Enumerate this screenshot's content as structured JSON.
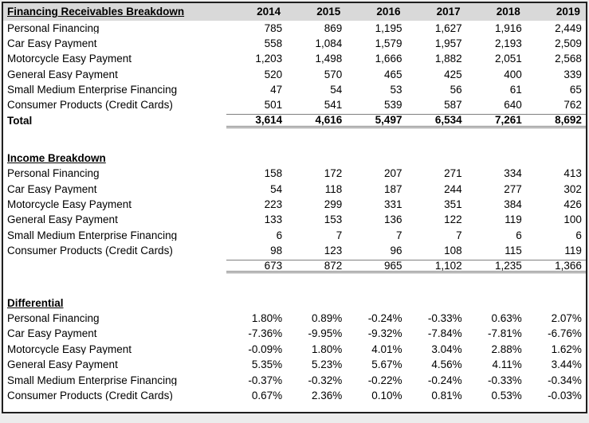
{
  "theme": {
    "page_background": "#ececec",
    "sheet_background": "#ffffff",
    "outer_border": "#1f1f1f",
    "header_band_background": "#d9d9d9",
    "total_rule_color": "#7f7f7f",
    "text_color": "#000000"
  },
  "years": [
    "2014",
    "2015",
    "2016",
    "2017",
    "2018",
    "2019"
  ],
  "sections": [
    {
      "title": "Financing Receivables Breakdown",
      "rows": [
        {
          "label": "Personal Financing",
          "values": [
            "785",
            "869",
            "1,195",
            "1,627",
            "1,916",
            "2,449"
          ]
        },
        {
          "label": "Car Easy Payment",
          "values": [
            "558",
            "1,084",
            "1,579",
            "1,957",
            "2,193",
            "2,509"
          ]
        },
        {
          "label": "Motorcycle Easy Payment",
          "values": [
            "1,203",
            "1,498",
            "1,666",
            "1,882",
            "2,051",
            "2,568"
          ]
        },
        {
          "label": "General Easy Payment",
          "values": [
            "520",
            "570",
            "465",
            "425",
            "400",
            "339"
          ]
        },
        {
          "label": "Small Medium Enterprise Financing",
          "values": [
            "47",
            "54",
            "53",
            "56",
            "61",
            "65"
          ]
        },
        {
          "label": "Consumer Products (Credit Cards)",
          "values": [
            "501",
            "541",
            "539",
            "587",
            "640",
            "762"
          ]
        }
      ],
      "total": {
        "label": "Total",
        "values": [
          "3,614",
          "4,616",
          "5,497",
          "6,534",
          "7,261",
          "8,692"
        ]
      }
    },
    {
      "title": "Income Breakdown",
      "rows": [
        {
          "label": "Personal Financing",
          "values": [
            "158",
            "172",
            "207",
            "271",
            "334",
            "413"
          ]
        },
        {
          "label": "Car Easy Payment",
          "values": [
            "54",
            "118",
            "187",
            "244",
            "277",
            "302"
          ]
        },
        {
          "label": "Motorcycle Easy Payment",
          "values": [
            "223",
            "299",
            "331",
            "351",
            "384",
            "426"
          ]
        },
        {
          "label": "General Easy Payment",
          "values": [
            "133",
            "153",
            "136",
            "122",
            "119",
            "100"
          ]
        },
        {
          "label": "Small Medium Enterprise Financing",
          "values": [
            "6",
            "7",
            "7",
            "7",
            "6",
            "6"
          ]
        },
        {
          "label": "Consumer Products (Credit Cards)",
          "values": [
            "98",
            "123",
            "96",
            "108",
            "115",
            "119"
          ]
        }
      ],
      "total": {
        "label": "",
        "values": [
          "673",
          "872",
          "965",
          "1,102",
          "1,235",
          "1,366"
        ]
      }
    },
    {
      "title": "Differential",
      "rows": [
        {
          "label": "Personal Financing",
          "values": [
            "1.80%",
            "0.89%",
            "-0.24%",
            "-0.33%",
            "0.63%",
            "2.07%"
          ]
        },
        {
          "label": "Car Easy Payment",
          "values": [
            "-7.36%",
            "-9.95%",
            "-9.32%",
            "-7.84%",
            "-7.81%",
            "-6.76%"
          ]
        },
        {
          "label": "Motorcycle Easy Payment",
          "values": [
            "-0.09%",
            "1.80%",
            "4.01%",
            "3.04%",
            "2.88%",
            "1.62%"
          ]
        },
        {
          "label": "General Easy Payment",
          "values": [
            "5.35%",
            "5.23%",
            "5.67%",
            "4.56%",
            "4.11%",
            "3.44%"
          ]
        },
        {
          "label": "Small Medium Enterprise Financing",
          "values": [
            "-0.37%",
            "-0.32%",
            "-0.22%",
            "-0.24%",
            "-0.33%",
            "-0.34%"
          ]
        },
        {
          "label": "Consumer Products (Credit Cards)",
          "values": [
            "0.67%",
            "2.36%",
            "0.10%",
            "0.81%",
            "0.53%",
            "-0.03%"
          ]
        }
      ]
    }
  ]
}
